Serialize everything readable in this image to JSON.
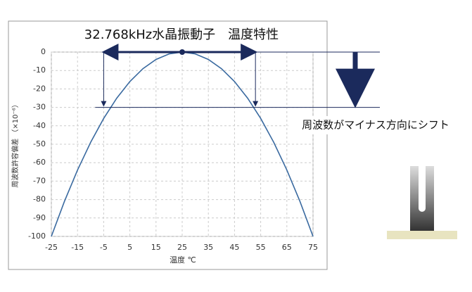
{
  "chart_data": {
    "type": "line",
    "title": "32.768kHz水晶振動子　温度特性",
    "x_label": "温度 ℃",
    "y_label": "周波数許容偏差 （×10⁻⁶）",
    "x": [
      -25,
      -20,
      -15,
      -10,
      -5,
      0,
      5,
      10,
      15,
      20,
      25,
      30,
      35,
      40,
      45,
      50,
      55,
      60,
      65,
      70,
      75
    ],
    "series": [
      {
        "color": "#3a6aa0",
        "values": [
          -100,
          -81,
          -64,
          -49,
          -36,
          -25,
          -16,
          -9,
          -4,
          -1,
          0,
          -1,
          -4,
          -9,
          -16,
          -25,
          -36,
          -49,
          -64,
          -81,
          -100
        ]
      }
    ],
    "xlim": [
      -25,
      75
    ],
    "xticks": [
      -25,
      -15,
      -5,
      5,
      15,
      25,
      35,
      45,
      55,
      65,
      75
    ],
    "ylim": [
      -100,
      0
    ],
    "yticks": [
      0,
      -10,
      -20,
      -30,
      -40,
      -50,
      -60,
      -70,
      -80,
      -90,
      -100
    ],
    "grid": true,
    "annotation": {
      "text": "周波数がマイナス方向にシフト",
      "values": [
        0,
        -30
      ],
      "x": [
        -5,
        53
      ],
      "color": "#1b2a5c"
    }
  }
}
